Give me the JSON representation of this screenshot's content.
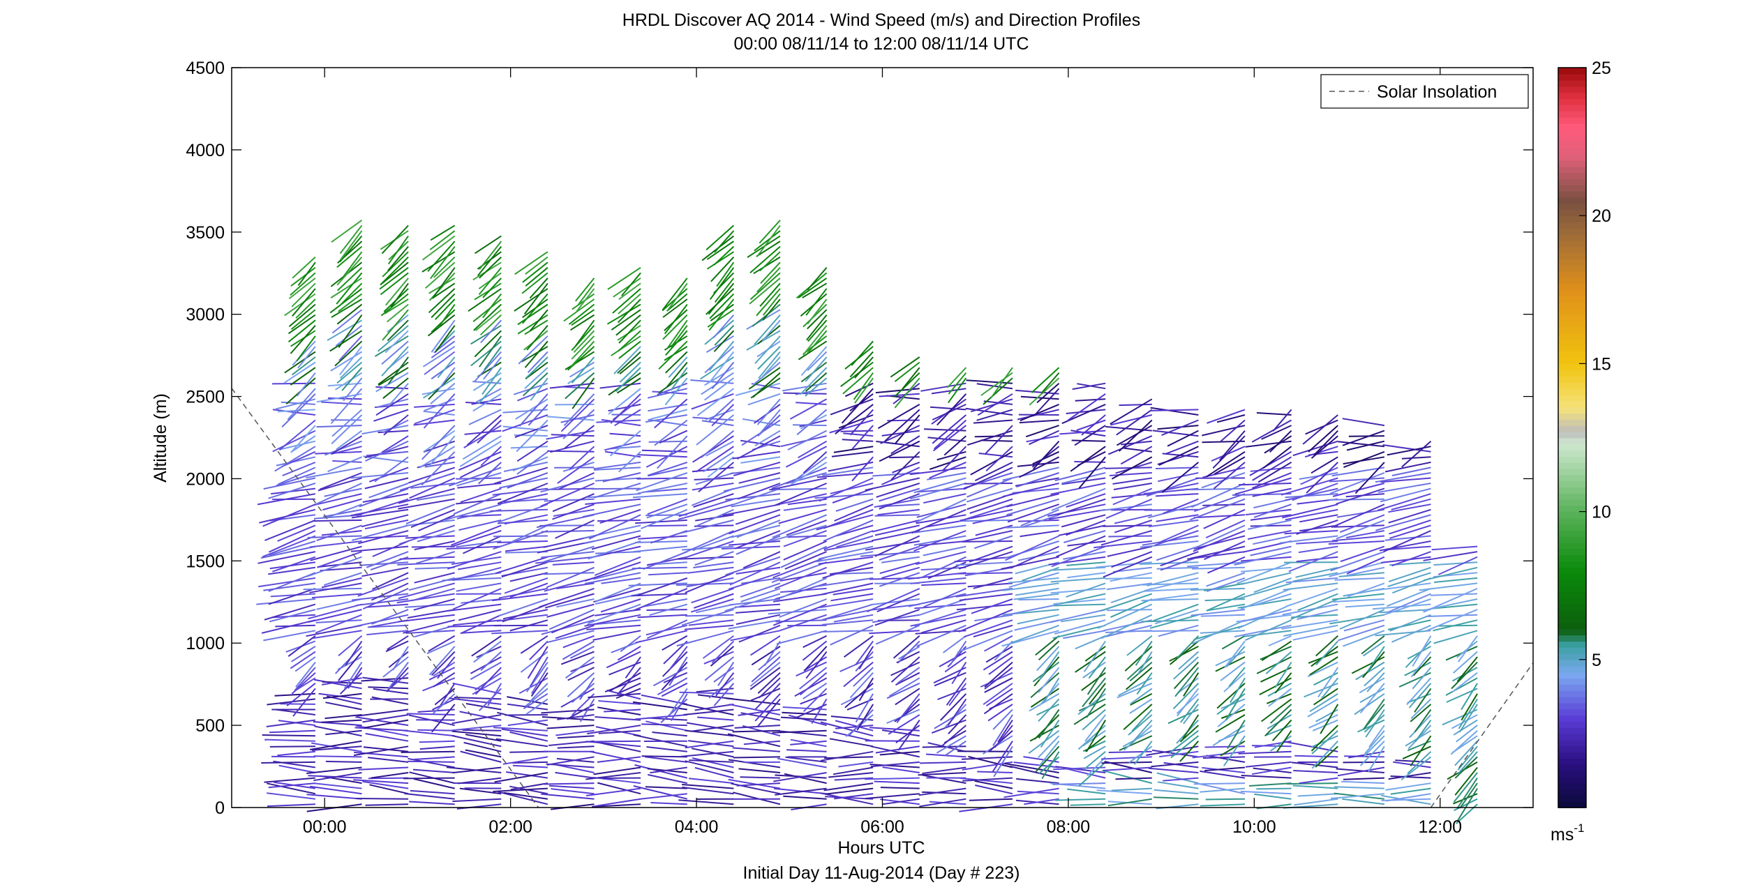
{
  "chart_data": {
    "type": "wind-barb-profile",
    "title": "HRDL Discover AQ 2014 - Wind Speed (m/s) and Direction Profiles",
    "subtitle": "00:00 08/11/14 to 12:00 08/11/14  UTC",
    "xlabel": "Hours UTC",
    "xlabel2": "Initial Day 11-Aug-2014 (Day # 223)",
    "ylabel": "Altitude (m)",
    "xlim": [
      -1.0,
      13.0
    ],
    "ylim": [
      0,
      4500
    ],
    "xticks": [
      {
        "value": 0,
        "label": "00:00"
      },
      {
        "value": 2,
        "label": "02:00"
      },
      {
        "value": 4,
        "label": "04:00"
      },
      {
        "value": 6,
        "label": "06:00"
      },
      {
        "value": 8,
        "label": "08:00"
      },
      {
        "value": 10,
        "label": "10:00"
      },
      {
        "value": 12,
        "label": "12:00"
      }
    ],
    "yticks": [
      {
        "value": 0,
        "label": "0"
      },
      {
        "value": 500,
        "label": "500"
      },
      {
        "value": 1000,
        "label": "1000"
      },
      {
        "value": 1500,
        "label": "1500"
      },
      {
        "value": 2000,
        "label": "2000"
      },
      {
        "value": 2500,
        "label": "2500"
      },
      {
        "value": 3000,
        "label": "3000"
      },
      {
        "value": 3500,
        "label": "3500"
      },
      {
        "value": 4000,
        "label": "4000"
      },
      {
        "value": 4500,
        "label": "4500"
      }
    ],
    "legend": {
      "label": "Solar Insolation",
      "position": "top-right"
    },
    "solar_insolation": {
      "segments": [
        [
          [
            -1.0,
            2550
          ],
          [
            2.3,
            0
          ]
        ],
        [
          [
            11.9,
            0
          ],
          [
            13.0,
            880
          ]
        ]
      ]
    },
    "colorbar": {
      "range": [
        0,
        25
      ],
      "ticks": [
        {
          "value": 5,
          "label": "5"
        },
        {
          "value": 10,
          "label": "10"
        },
        {
          "value": 15,
          "label": "15"
        },
        {
          "value": 20,
          "label": "20"
        },
        {
          "value": 25,
          "label": "25"
        }
      ],
      "unit": "ms",
      "unit_exponent": "-1",
      "colors": [
        {
          "v": 0,
          "c": "#0a0a3a"
        },
        {
          "v": 1.5,
          "c": "#2a0f80"
        },
        {
          "v": 3,
          "c": "#5a3bd6"
        },
        {
          "v": 4.5,
          "c": "#7aa8f0"
        },
        {
          "v": 5.5,
          "c": "#3aa0a0"
        },
        {
          "v": 6,
          "c": "#0c5e0c"
        },
        {
          "v": 8,
          "c": "#0a8a0a"
        },
        {
          "v": 10,
          "c": "#5ab25a"
        },
        {
          "v": 12.3,
          "c": "#cfe8cf"
        },
        {
          "v": 12.7,
          "c": "#bdbdbd"
        },
        {
          "v": 13.5,
          "c": "#f5e27a"
        },
        {
          "v": 15,
          "c": "#f1c40f"
        },
        {
          "v": 17.5,
          "c": "#e0901a"
        },
        {
          "v": 19.5,
          "c": "#9a6a3a"
        },
        {
          "v": 20.5,
          "c": "#7a5040"
        },
        {
          "v": 22,
          "c": "#e0607a"
        },
        {
          "v": 23,
          "c": "#ff5a7a"
        },
        {
          "v": 24,
          "c": "#e03040"
        },
        {
          "v": 25,
          "c": "#9a0a0a"
        }
      ]
    },
    "profiles": [
      {
        "t": -0.1,
        "top": 3350,
        "bl": 700
      },
      {
        "t": 0.4,
        "top": 3600,
        "bl": 800
      },
      {
        "t": 0.9,
        "top": 3550,
        "bl": 820
      },
      {
        "t": 1.4,
        "top": 3550,
        "bl": 600
      },
      {
        "t": 1.9,
        "top": 3500,
        "bl": 700
      },
      {
        "t": 2.4,
        "top": 3400,
        "bl": 650
      },
      {
        "t": 2.9,
        "top": 3250,
        "bl": 600
      },
      {
        "t": 3.4,
        "top": 3300,
        "bl": 700
      },
      {
        "t": 3.9,
        "top": 3250,
        "bl": 650
      },
      {
        "t": 4.4,
        "top": 3550,
        "bl": 750
      },
      {
        "t": 4.9,
        "top": 3600,
        "bl": 650
      },
      {
        "t": 5.4,
        "top": 3300,
        "bl": 600
      },
      {
        "t": 5.9,
        "top": 2850,
        "bl": 550
      },
      {
        "t": 6.4,
        "top": 2750,
        "bl": 500
      },
      {
        "t": 6.9,
        "top": 2700,
        "bl": 400
      },
      {
        "t": 7.4,
        "top": 2700,
        "bl": 350
      },
      {
        "t": 7.9,
        "top": 2700,
        "bl": 300
      },
      {
        "t": 8.4,
        "top": 2600,
        "bl": 250
      },
      {
        "t": 8.9,
        "top": 2500,
        "bl": 350
      },
      {
        "t": 9.4,
        "top": 2450,
        "bl": 380
      },
      {
        "t": 9.9,
        "top": 2450,
        "bl": 400
      },
      {
        "t": 10.4,
        "top": 2450,
        "bl": 420
      },
      {
        "t": 10.9,
        "top": 2400,
        "bl": 350
      },
      {
        "t": 11.4,
        "top": 2350,
        "bl": 350
      },
      {
        "t": 11.9,
        "top": 2250,
        "bl": 300
      },
      {
        "t": 12.4,
        "top": 1600,
        "bl": 0
      }
    ]
  }
}
